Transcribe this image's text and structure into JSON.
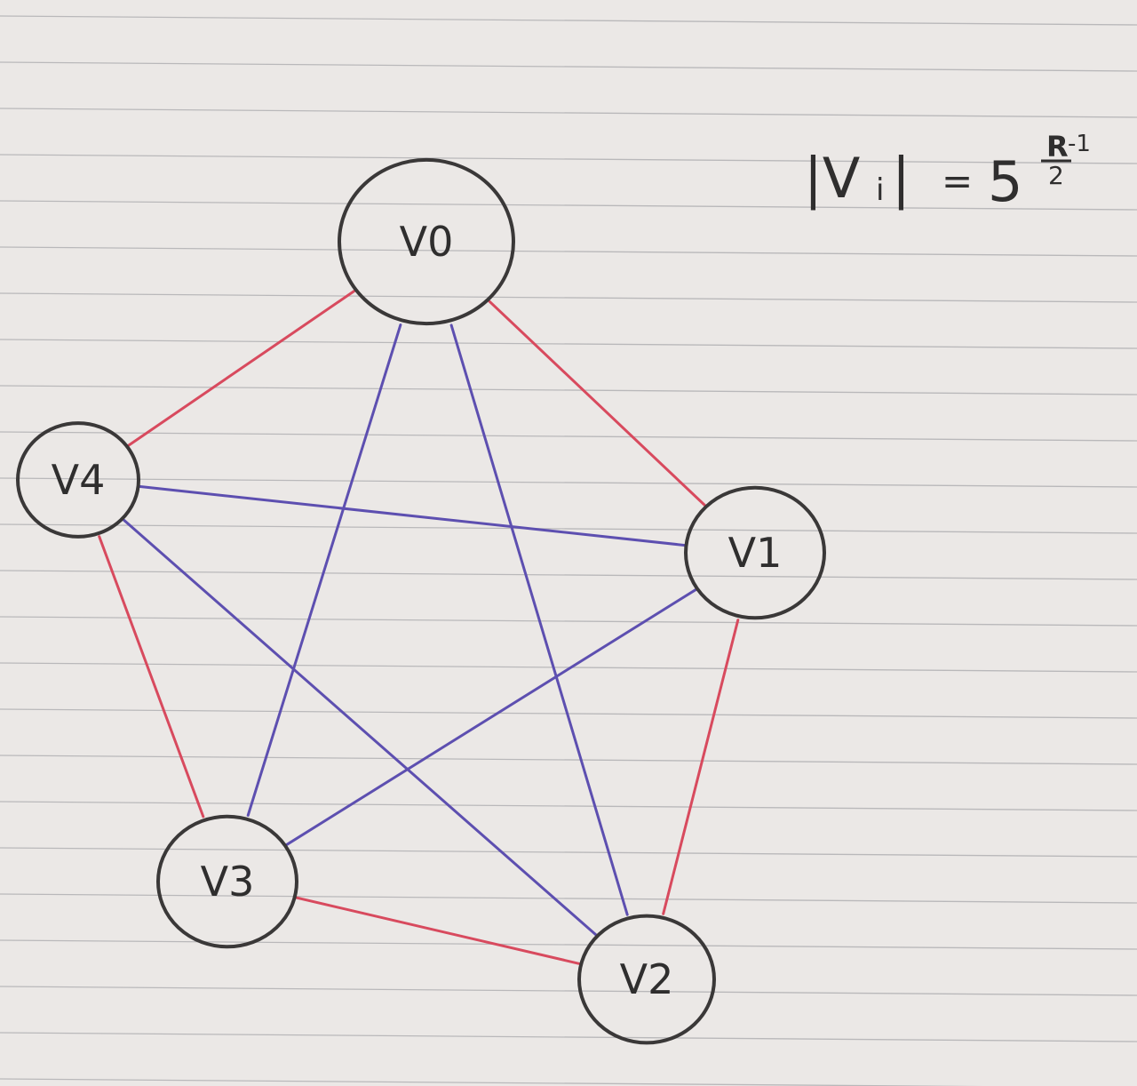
{
  "colors": {
    "paper": "#ebe8e6",
    "rule": "#a9a9ac",
    "ink": "#3a3838",
    "outer_edge": "#d84a5e",
    "inner_edge": "#5d4fb0"
  },
  "formula": {
    "lhs": "|V",
    "subscript": "i",
    "bar": "|",
    "equals": "=",
    "base": "5",
    "exp_numerator": "R",
    "exp_minus": "-1",
    "exp_denominator": "2"
  },
  "nodes": [
    {
      "id": "v0",
      "label": "V0"
    },
    {
      "id": "v1",
      "label": "V1"
    },
    {
      "id": "v2",
      "label": "V2"
    },
    {
      "id": "v3",
      "label": "V3"
    },
    {
      "id": "v4",
      "label": "V4"
    }
  ],
  "edges": [
    {
      "from": "v0",
      "to": "v1",
      "kind": "outer"
    },
    {
      "from": "v1",
      "to": "v2",
      "kind": "outer"
    },
    {
      "from": "v2",
      "to": "v3",
      "kind": "outer"
    },
    {
      "from": "v3",
      "to": "v4",
      "kind": "outer"
    },
    {
      "from": "v4",
      "to": "v0",
      "kind": "outer"
    },
    {
      "from": "v0",
      "to": "v2",
      "kind": "inner"
    },
    {
      "from": "v0",
      "to": "v3",
      "kind": "inner"
    },
    {
      "from": "v1",
      "to": "v3",
      "kind": "inner"
    },
    {
      "from": "v1",
      "to": "v4",
      "kind": "inner"
    },
    {
      "from": "v2",
      "to": "v4",
      "kind": "inner"
    }
  ]
}
